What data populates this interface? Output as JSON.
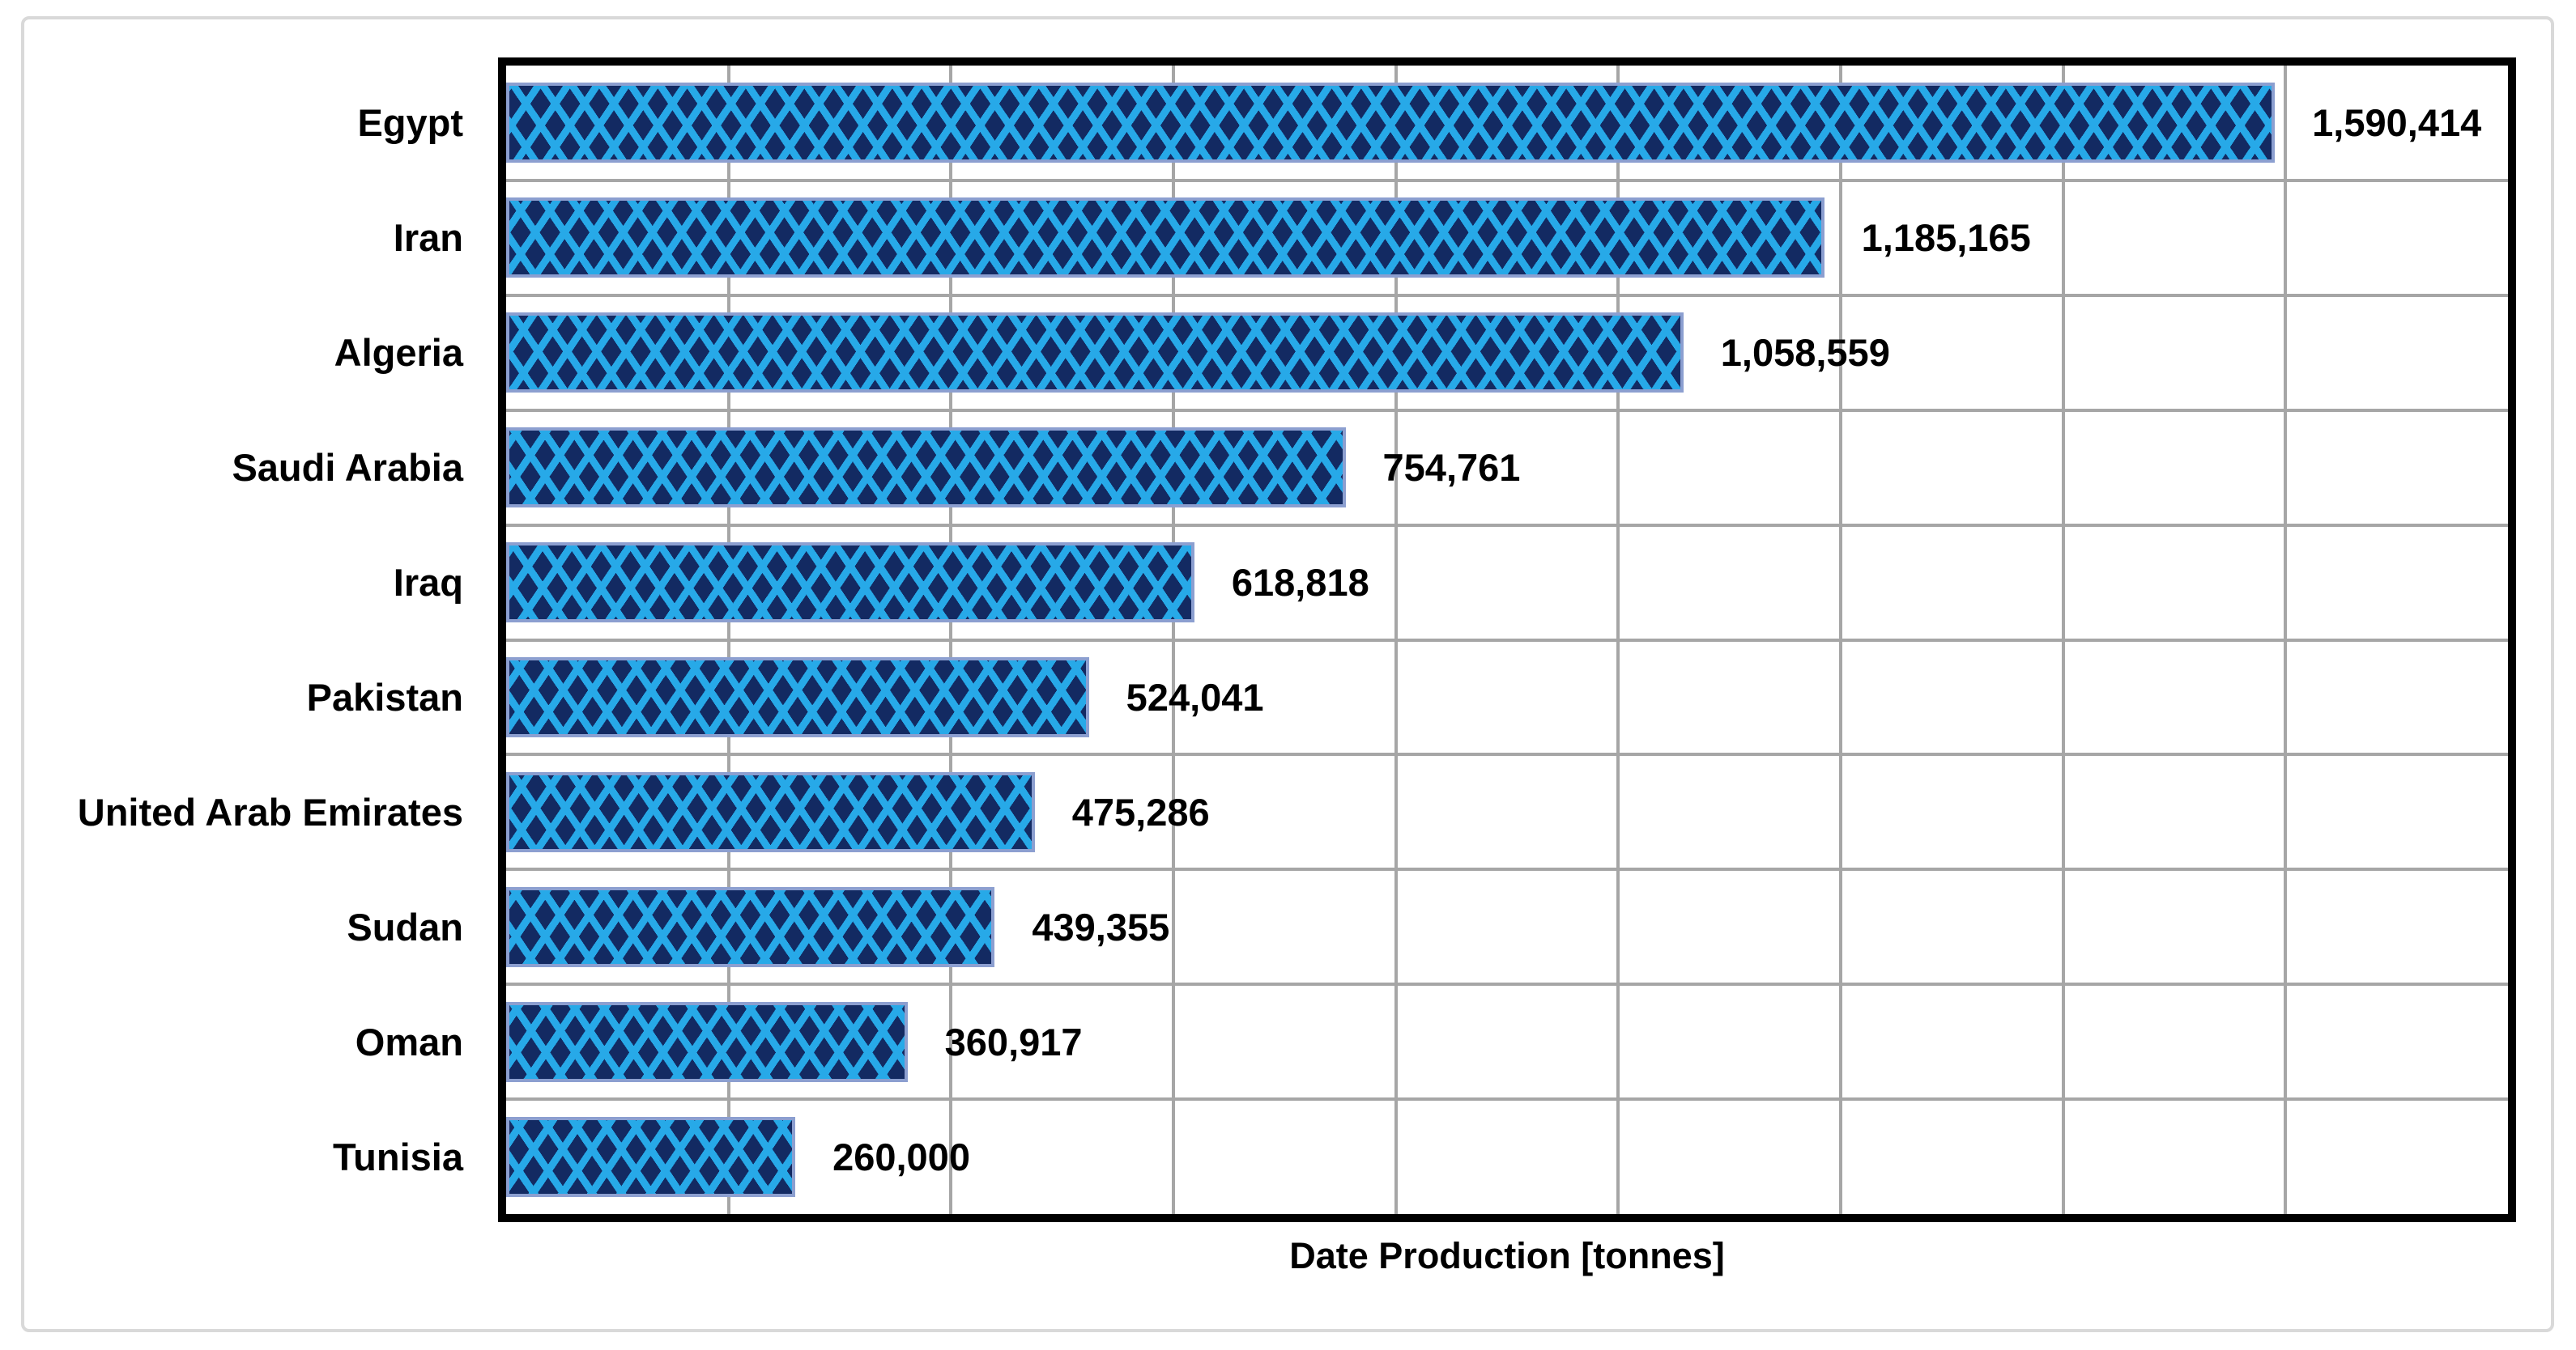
{
  "figure": {
    "background": "#FFFFFF",
    "border_color": "#D9D9D9"
  },
  "chart_data": {
    "type": "bar",
    "orientation": "horizontal",
    "title": "",
    "xlabel": "Date Production [tonnes]",
    "ylabel": "",
    "categories": [
      "Egypt",
      "Iran",
      "Algeria",
      "Saudi Arabia",
      "Iraq",
      "Pakistan",
      "United Arab Emirates",
      "Sudan",
      "Oman",
      "Tunisia"
    ],
    "values": [
      1590414,
      1185165,
      1058559,
      754761,
      618818,
      524041,
      475286,
      439355,
      360917,
      260000
    ],
    "value_labels": [
      "1,590,414",
      "1,185,165",
      "1,058,559",
      "754,761",
      "618,818",
      "524,041",
      "475,286",
      "439,355",
      "360,917",
      "260,000"
    ],
    "xlim": [
      0,
      1800000
    ],
    "x_tick_step": 200000,
    "x_tick_labels_visible": false,
    "grid": true,
    "legend": "none",
    "style": {
      "bar_fill": "#132A62",
      "bar_pattern": "#27A9E8",
      "bar_border": "#8C9FD0",
      "gridline": "#A6A6A6",
      "plot_border": "#000000",
      "text": "#000000"
    }
  }
}
